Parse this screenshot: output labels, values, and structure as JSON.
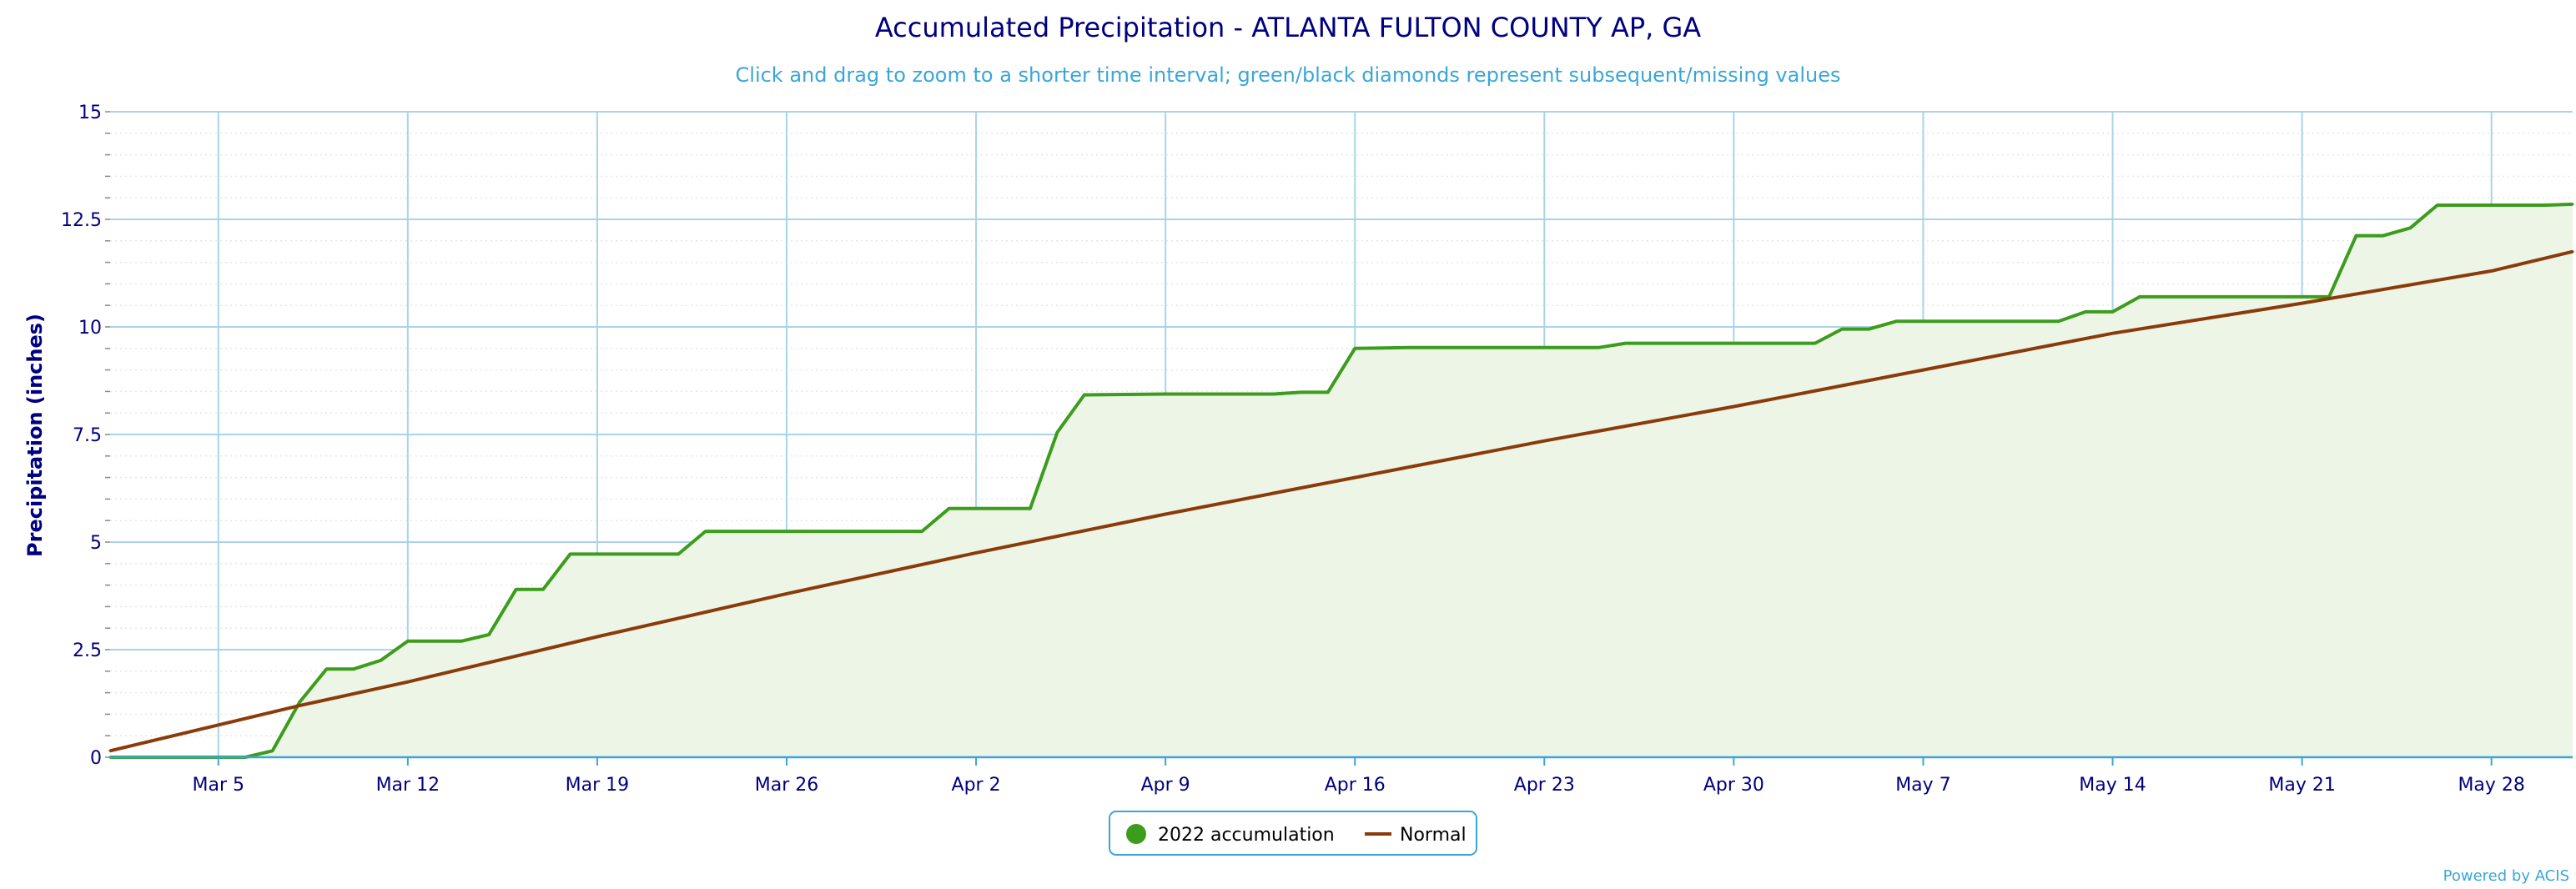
{
  "chart_data": {
    "type": "area",
    "title": "Accumulated Precipitation - ATLANTA FULTON COUNTY AP, GA",
    "subtitle": "Click and drag to zoom to a shorter time interval; green/black diamonds represent subsequent/missing values",
    "ylabel": "Precipitation (inches)",
    "xlabel": "",
    "ylim": [
      0,
      15
    ],
    "yticks": [
      "0",
      "2.5",
      "5",
      "7.5",
      "10",
      "12.5",
      "15"
    ],
    "x_start": "2022-03-01",
    "x_end": "2022-05-31",
    "xticks": [
      {
        "date": "2022-03-05",
        "label": "Mar 5"
      },
      {
        "date": "2022-03-12",
        "label": "Mar 12"
      },
      {
        "date": "2022-03-19",
        "label": "Mar 19"
      },
      {
        "date": "2022-03-26",
        "label": "Mar 26"
      },
      {
        "date": "2022-04-02",
        "label": "Apr 2"
      },
      {
        "date": "2022-04-09",
        "label": "Apr 9"
      },
      {
        "date": "2022-04-16",
        "label": "Apr 16"
      },
      {
        "date": "2022-04-23",
        "label": "Apr 23"
      },
      {
        "date": "2022-04-30",
        "label": "Apr 30"
      },
      {
        "date": "2022-05-07",
        "label": "May 7"
      },
      {
        "date": "2022-05-14",
        "label": "May 14"
      },
      {
        "date": "2022-05-21",
        "label": "May 21"
      },
      {
        "date": "2022-05-28",
        "label": "May 28"
      }
    ],
    "grid": true,
    "legend_position": "bottom-center",
    "series": [
      {
        "name": "2022 accumulation",
        "color": "#3c9c1c",
        "fill": "#ecf5e6",
        "points": [
          [
            "2022-03-01",
            0.0
          ],
          [
            "2022-03-06",
            0.0
          ],
          [
            "2022-03-07",
            0.15
          ],
          [
            "2022-03-08",
            1.28
          ],
          [
            "2022-03-09",
            2.05
          ],
          [
            "2022-03-10",
            2.05
          ],
          [
            "2022-03-11",
            2.25
          ],
          [
            "2022-03-12",
            2.7
          ],
          [
            "2022-03-14",
            2.7
          ],
          [
            "2022-03-15",
            2.85
          ],
          [
            "2022-03-16",
            3.9
          ],
          [
            "2022-03-17",
            3.9
          ],
          [
            "2022-03-18",
            4.72
          ],
          [
            "2022-03-22",
            4.72
          ],
          [
            "2022-03-23",
            5.25
          ],
          [
            "2022-03-31",
            5.25
          ],
          [
            "2022-04-01",
            5.78
          ],
          [
            "2022-04-04",
            5.78
          ],
          [
            "2022-04-05",
            7.55
          ],
          [
            "2022-04-06",
            8.42
          ],
          [
            "2022-04-09",
            8.44
          ],
          [
            "2022-04-13",
            8.44
          ],
          [
            "2022-04-14",
            8.48
          ],
          [
            "2022-04-15",
            8.48
          ],
          [
            "2022-04-16",
            9.5
          ],
          [
            "2022-04-18",
            9.52
          ],
          [
            "2022-04-25",
            9.52
          ],
          [
            "2022-04-26",
            9.62
          ],
          [
            "2022-05-03",
            9.62
          ],
          [
            "2022-05-04",
            9.95
          ],
          [
            "2022-05-05",
            9.95
          ],
          [
            "2022-05-06",
            10.13
          ],
          [
            "2022-05-12",
            10.13
          ],
          [
            "2022-05-13",
            10.35
          ],
          [
            "2022-05-14",
            10.35
          ],
          [
            "2022-05-15",
            10.7
          ],
          [
            "2022-05-22",
            10.7
          ],
          [
            "2022-05-23",
            12.12
          ],
          [
            "2022-05-24",
            12.12
          ],
          [
            "2022-05-25",
            12.3
          ],
          [
            "2022-05-26",
            12.83
          ],
          [
            "2022-05-30",
            12.83
          ],
          [
            "2022-05-31",
            12.85
          ]
        ]
      },
      {
        "name": "Normal",
        "color": "#8b3a0a",
        "points": [
          [
            "2022-03-01",
            0.15
          ],
          [
            "2022-03-08",
            1.2
          ],
          [
            "2022-03-12",
            1.75
          ],
          [
            "2022-03-19",
            2.8
          ],
          [
            "2022-03-26",
            3.8
          ],
          [
            "2022-04-02",
            4.75
          ],
          [
            "2022-04-09",
            5.65
          ],
          [
            "2022-04-16",
            6.5
          ],
          [
            "2022-04-23",
            7.35
          ],
          [
            "2022-04-30",
            8.15
          ],
          [
            "2022-05-07",
            9.0
          ],
          [
            "2022-05-14",
            9.85
          ],
          [
            "2022-05-21",
            10.55
          ],
          [
            "2022-05-28",
            11.3
          ],
          [
            "2022-05-31",
            11.75
          ]
        ]
      }
    ],
    "credits": "Powered by ACIS"
  }
}
